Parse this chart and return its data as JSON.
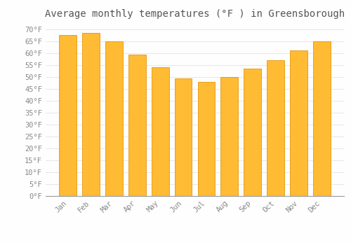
{
  "title": "Average monthly temperatures (°F ) in Greensborough",
  "months": [
    "Jan",
    "Feb",
    "Mar",
    "Apr",
    "May",
    "Jun",
    "Jul",
    "Aug",
    "Sep",
    "Oct",
    "Nov",
    "Dec"
  ],
  "values": [
    67.5,
    68.5,
    65.0,
    59.5,
    54.0,
    49.5,
    48.0,
    50.0,
    53.5,
    57.0,
    61.0,
    65.0
  ],
  "bar_color_face": "#FFBB33",
  "bar_color_edge": "#E8960A",
  "background_color": "#FEFEFE",
  "grid_color": "#DDDDDD",
  "ylim": [
    0,
    72
  ],
  "ytick_values": [
    0,
    5,
    10,
    15,
    20,
    25,
    30,
    35,
    40,
    45,
    50,
    55,
    60,
    65,
    70
  ],
  "title_fontsize": 10,
  "tick_fontsize": 7.5,
  "tick_label_color": "#888888",
  "font_family": "monospace"
}
